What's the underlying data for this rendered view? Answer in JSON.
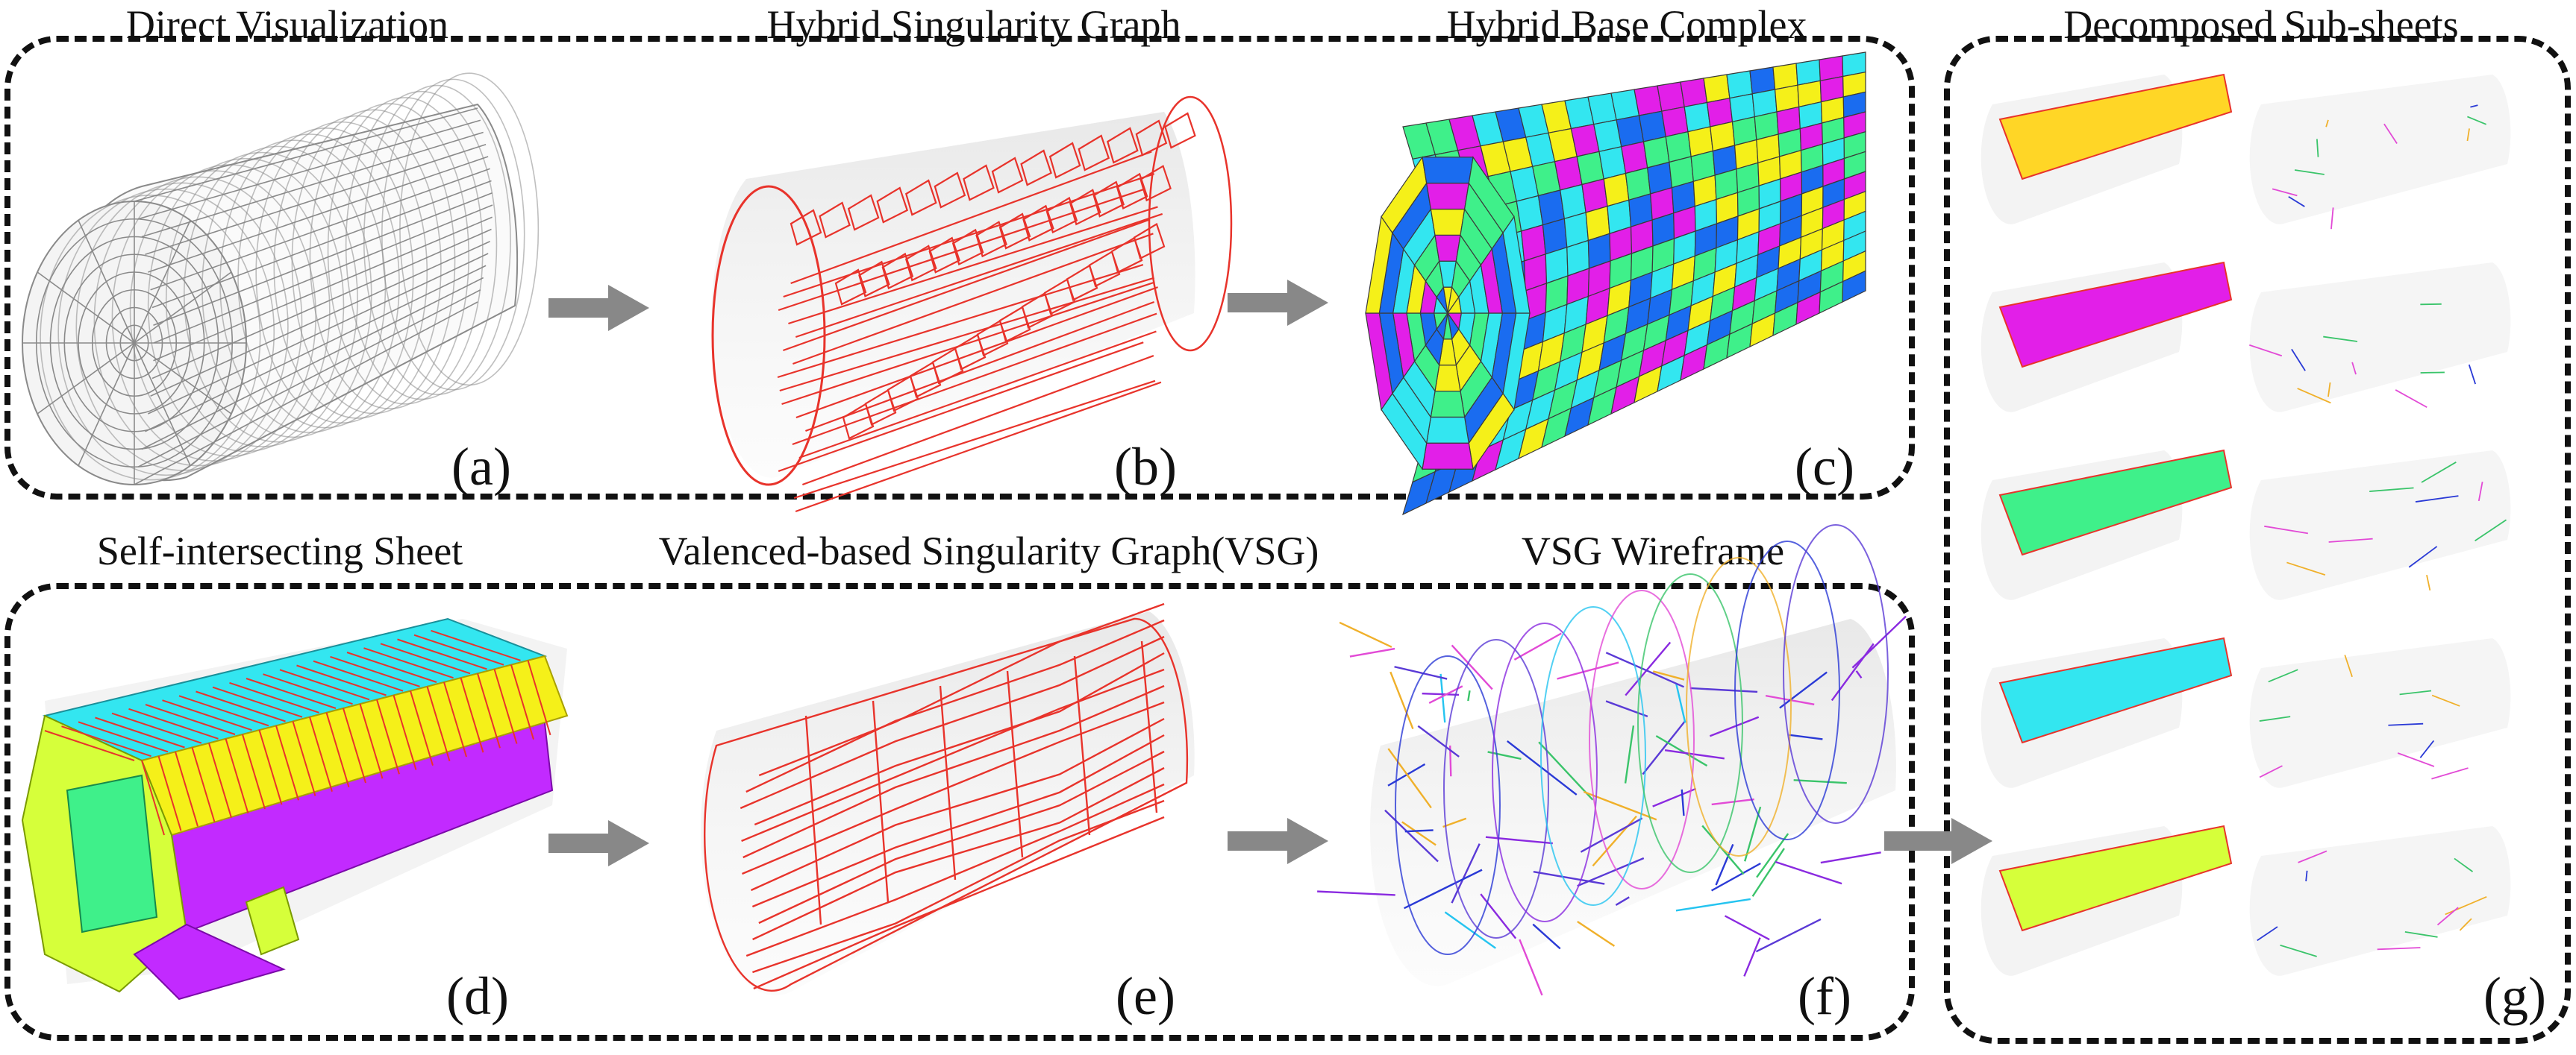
{
  "titles": {
    "a": "Direct Visualization",
    "b": "Hybrid Singularity Graph",
    "c": "Hybrid Base Complex",
    "d": "Self-intersecting Sheet",
    "e": "Valenced-based Singularity Graph(VSG)",
    "f": "VSG Wireframe",
    "g": "Decomposed Sub-sheets"
  },
  "labels": {
    "a": "(a)",
    "b": "(b)",
    "c": "(c)",
    "d": "(d)",
    "e": "(e)",
    "f": "(f)",
    "g": "(g)"
  },
  "colors": {
    "arrow": "#888888",
    "border": "#111111",
    "red_wire": "#e8332b",
    "mesh": "#8a8a8a",
    "cyan": "#33e6f0",
    "yellow": "#f5f019",
    "green": "#3ff08a",
    "magenta": "#e21fe8",
    "blue": "#1a6cf0",
    "lime": "#d6ff3a",
    "purple": "#c22aff",
    "orange_yellow": "#ffd626"
  }
}
